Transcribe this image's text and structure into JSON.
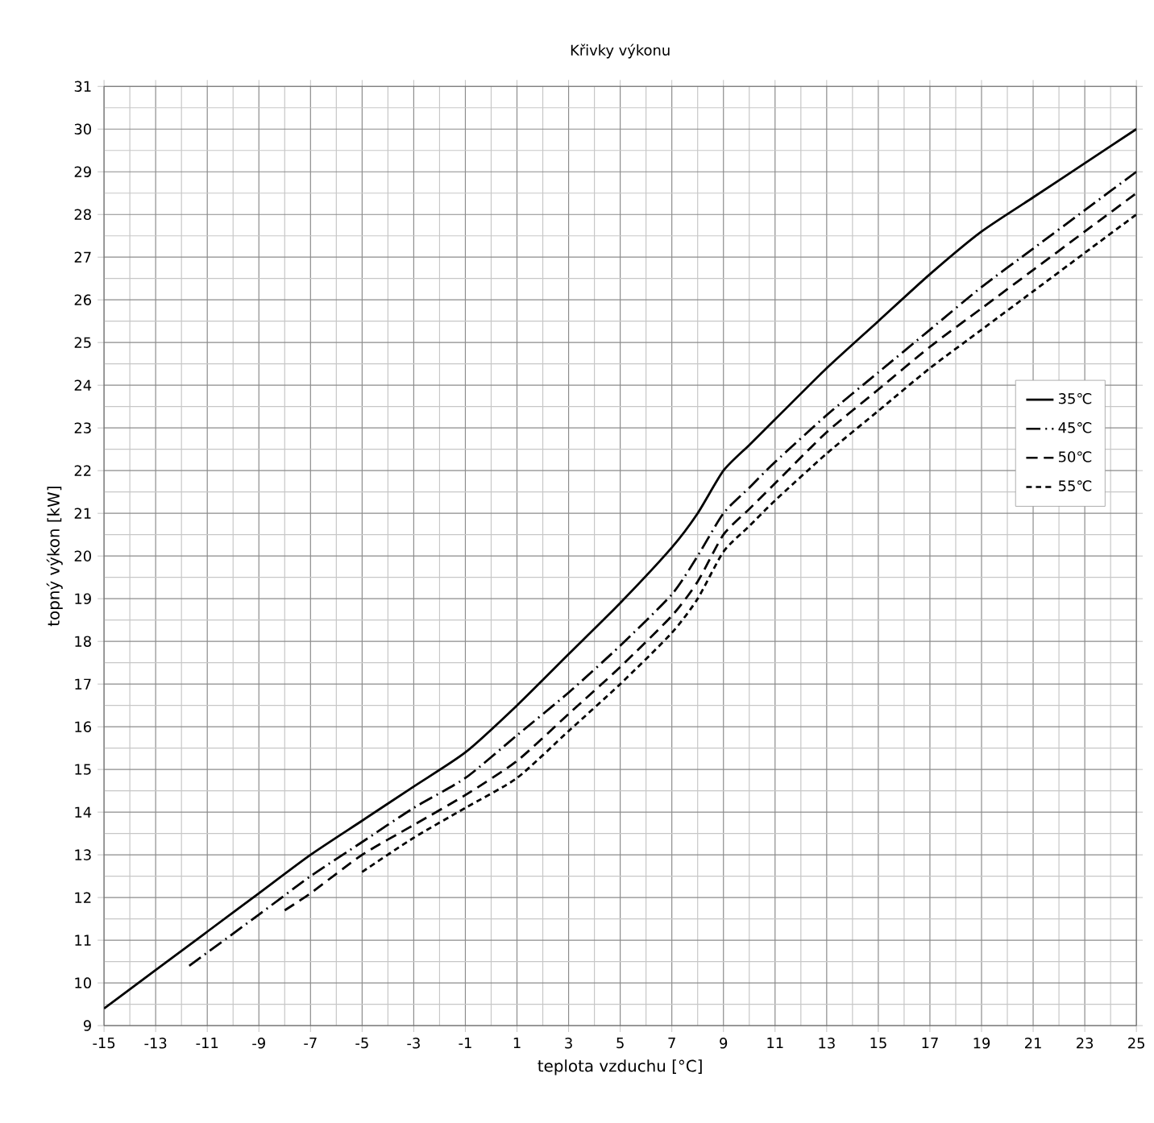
{
  "chart_data": {
    "type": "line",
    "title": "Křivky výkonu",
    "xlabel": "teplota vzduchu [°C]",
    "ylabel": "topný výkon [kW]",
    "xlim": [
      -15,
      25
    ],
    "ylim": [
      9,
      31
    ],
    "xticks": [
      -15,
      -13,
      -11,
      -9,
      -7,
      -5,
      -3,
      -1,
      1,
      3,
      5,
      7,
      9,
      11,
      13,
      15,
      17,
      19,
      21,
      23,
      25
    ],
    "yticks": [
      9,
      10,
      11,
      12,
      13,
      14,
      15,
      16,
      17,
      18,
      19,
      20,
      21,
      22,
      23,
      24,
      25,
      26,
      27,
      28,
      29,
      30,
      31
    ],
    "grid": true,
    "legend": "right",
    "marker": "none",
    "series": [
      {
        "name": "35℃",
        "color": "#000000",
        "line_style": "solid",
        "x": [
          -15,
          -13,
          -11,
          -9,
          -7,
          -5,
          -3,
          -1,
          1,
          3,
          5,
          7,
          8,
          9,
          10,
          11,
          13,
          15,
          17,
          19,
          21,
          23,
          25
        ],
        "values": [
          9.4,
          10.3,
          11.2,
          12.1,
          13.0,
          13.8,
          14.6,
          15.4,
          16.5,
          17.7,
          18.9,
          20.2,
          21.0,
          22.0,
          22.6,
          23.2,
          24.4,
          25.5,
          26.6,
          27.6,
          28.4,
          29.2,
          30.0
        ]
      },
      {
        "name": "45℃",
        "color": "#000000",
        "line_style": "dashdot",
        "x": [
          -11.7,
          -9,
          -7,
          -5,
          -3,
          -1,
          1,
          3,
          5,
          7,
          8,
          9,
          10,
          11,
          13,
          15,
          17,
          19,
          21,
          23,
          25
        ],
        "values": [
          10.4,
          11.6,
          12.5,
          13.3,
          14.1,
          14.8,
          15.8,
          16.8,
          17.9,
          19.1,
          20.0,
          21.0,
          21.6,
          22.2,
          23.3,
          24.3,
          25.3,
          26.3,
          27.2,
          28.1,
          29.0
        ]
      },
      {
        "name": "50℃",
        "color": "#000000",
        "line_style": "dashed",
        "x": [
          -8,
          -7,
          -5,
          -3,
          -1,
          1,
          3,
          5,
          7,
          8,
          9,
          10,
          11,
          13,
          15,
          17,
          19,
          21,
          23,
          25
        ],
        "values": [
          11.7,
          12.1,
          13.0,
          13.7,
          14.4,
          15.2,
          16.3,
          17.4,
          18.6,
          19.4,
          20.5,
          21.1,
          21.7,
          22.9,
          23.9,
          24.9,
          25.8,
          26.7,
          27.6,
          28.5
        ]
      },
      {
        "name": "55℃",
        "color": "#000000",
        "line_style": "dotted",
        "x": [
          -5,
          -3,
          -1,
          1,
          3,
          5,
          7,
          8,
          9,
          10,
          11,
          13,
          15,
          17,
          19,
          21,
          23,
          25
        ],
        "values": [
          12.6,
          13.4,
          14.1,
          14.8,
          15.9,
          17.0,
          18.2,
          19.0,
          20.1,
          20.7,
          21.3,
          22.4,
          23.4,
          24.4,
          25.3,
          26.2,
          27.1,
          28.0
        ]
      }
    ]
  }
}
